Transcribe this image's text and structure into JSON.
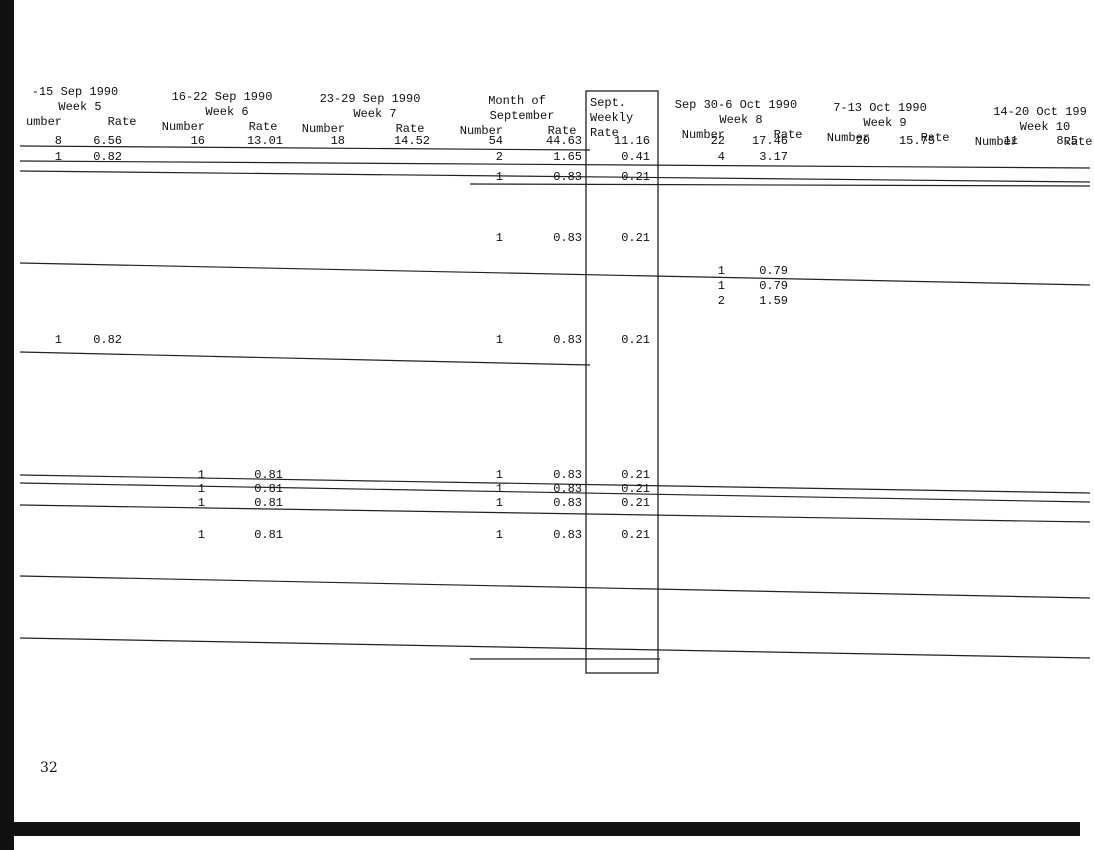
{
  "table": {
    "groups": [
      {
        "title": "-15 Sep 1990",
        "subtitle": "Week 5",
        "columns": [
          "umber",
          "Rate"
        ]
      },
      {
        "title": "16-22 Sep 1990",
        "subtitle": "Week 6",
        "columns": [
          "Number",
          "Rate"
        ]
      },
      {
        "title": "23-29 Sep 1990",
        "subtitle": "Week 7",
        "columns": [
          "Number",
          "Rate"
        ]
      },
      {
        "title": "Month of",
        "subtitle": "September",
        "columns": [
          "Number",
          "Rate"
        ]
      },
      {
        "title": "Sept.",
        "subtitle": "Weekly",
        "columns": [
          "Rate"
        ]
      },
      {
        "title": "Sep 30-6 Oct 1990",
        "subtitle": "Week 8",
        "columns": [
          "Number",
          "Rate"
        ]
      },
      {
        "title": "7-13 Oct 1990",
        "subtitle": "Week 9",
        "columns": [
          "Number",
          "Rate"
        ]
      },
      {
        "title": "14-20 Oct 199",
        "subtitle": "Week 10",
        "columns": [
          "Number",
          "Rate"
        ]
      }
    ],
    "rows": [
      [
        8,
        6.56,
        16,
        13.01,
        18,
        14.52,
        54,
        44.63,
        11.16,
        22,
        17.46,
        20,
        15.75,
        11,
        8.5
      ],
      [
        1,
        0.82,
        null,
        null,
        null,
        null,
        2,
        1.65,
        0.41,
        4,
        3.17,
        null,
        null,
        null,
        null
      ],
      [
        null,
        null,
        null,
        null,
        null,
        null,
        1,
        0.83,
        0.21,
        null,
        null,
        null,
        null,
        null,
        null
      ],
      [
        null,
        null,
        null,
        null,
        null,
        null,
        1,
        0.83,
        0.21,
        null,
        null,
        null,
        null,
        null,
        null
      ],
      [
        null,
        null,
        null,
        null,
        null,
        null,
        null,
        null,
        null,
        1,
        0.79,
        null,
        null,
        null,
        null
      ],
      [
        null,
        null,
        null,
        null,
        null,
        null,
        null,
        null,
        null,
        1,
        0.79,
        null,
        null,
        null,
        null
      ],
      [
        null,
        null,
        null,
        null,
        null,
        null,
        null,
        null,
        null,
        2,
        1.59,
        null,
        null,
        null,
        null
      ],
      [
        1,
        0.82,
        null,
        null,
        null,
        null,
        1,
        0.83,
        0.21,
        null,
        null,
        null,
        null,
        null,
        null
      ],
      [
        null,
        null,
        1,
        0.81,
        null,
        null,
        1,
        0.83,
        0.21,
        null,
        null,
        null,
        null,
        null,
        null
      ],
      [
        null,
        null,
        1,
        0.81,
        null,
        null,
        1,
        0.83,
        0.21,
        null,
        null,
        null,
        null,
        null,
        null
      ],
      [
        null,
        null,
        1,
        0.81,
        null,
        null,
        1,
        0.83,
        0.21,
        null,
        null,
        null,
        null,
        null,
        null
      ],
      [
        null,
        null,
        1,
        0.81,
        null,
        null,
        1,
        0.83,
        0.21,
        null,
        null,
        null,
        null,
        null,
        null
      ]
    ]
  },
  "page_number": "32"
}
